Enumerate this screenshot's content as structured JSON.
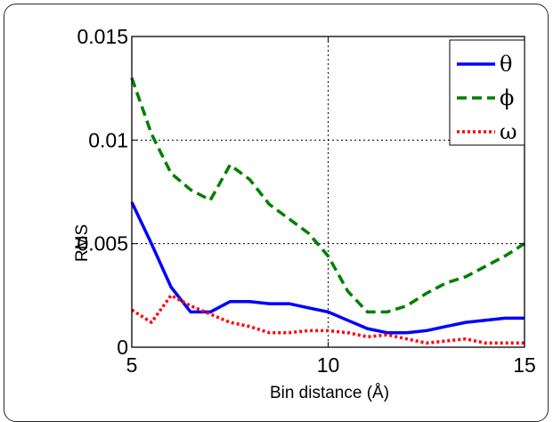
{
  "chart_data": {
    "type": "line",
    "title": "",
    "xlabel": "Bin distance (Å)",
    "ylabel": "RMS",
    "xlim": [
      5,
      15
    ],
    "ylim": [
      0,
      0.015
    ],
    "xticks": [
      5,
      10,
      15
    ],
    "xtick_labels": [
      "5",
      "10",
      "15"
    ],
    "yticks": [
      0,
      0.005,
      0.01,
      0.015
    ],
    "ytick_labels": [
      "0",
      "0.005",
      "0.01",
      "0.015"
    ],
    "grid": "dotted at x=10 and y=0.005, 0.01",
    "legend_position": "top-right",
    "series": [
      {
        "name": "θ",
        "color": "#0000ff",
        "dash": "solid",
        "x": [
          5,
          5.5,
          6,
          6.5,
          7,
          7.5,
          8,
          8.5,
          9,
          9.5,
          10,
          10.5,
          11,
          11.5,
          12,
          12.5,
          13,
          13.5,
          14,
          14.5,
          15
        ],
        "values": [
          0.007,
          0.005,
          0.0029,
          0.0017,
          0.0017,
          0.0022,
          0.0022,
          0.0021,
          0.0021,
          0.0019,
          0.0017,
          0.0013,
          0.0009,
          0.0007,
          0.0007,
          0.0008,
          0.001,
          0.0012,
          0.0013,
          0.0014,
          0.0014
        ]
      },
      {
        "name": "ϕ",
        "color": "#007f00",
        "dash": "dashed",
        "x": [
          5,
          5.5,
          6,
          6.5,
          7,
          7.5,
          8,
          8.5,
          9,
          9.5,
          10,
          10.5,
          11,
          11.5,
          12,
          12.5,
          13,
          13.5,
          14,
          14.5,
          15
        ],
        "values": [
          0.013,
          0.0103,
          0.0084,
          0.0076,
          0.0071,
          0.0088,
          0.0081,
          0.0069,
          0.0062,
          0.0055,
          0.0044,
          0.0027,
          0.0017,
          0.0017,
          0.002,
          0.0026,
          0.0031,
          0.0034,
          0.0039,
          0.0044,
          0.005
        ]
      },
      {
        "name": "ω",
        "color": "#ff0000",
        "dash": "dotted",
        "x": [
          5,
          5.5,
          6,
          6.5,
          7,
          7.5,
          8,
          8.5,
          9,
          9.5,
          10,
          10.5,
          11,
          11.5,
          12,
          12.5,
          13,
          13.5,
          14,
          14.5,
          15
        ],
        "values": [
          0.0018,
          0.0012,
          0.0025,
          0.002,
          0.0016,
          0.0012,
          0.001,
          0.0007,
          0.0007,
          0.0008,
          0.0008,
          0.0007,
          0.0005,
          0.0006,
          0.0004,
          0.0002,
          0.0003,
          0.0004,
          0.0002,
          0.0002,
          0.0002
        ]
      }
    ]
  }
}
